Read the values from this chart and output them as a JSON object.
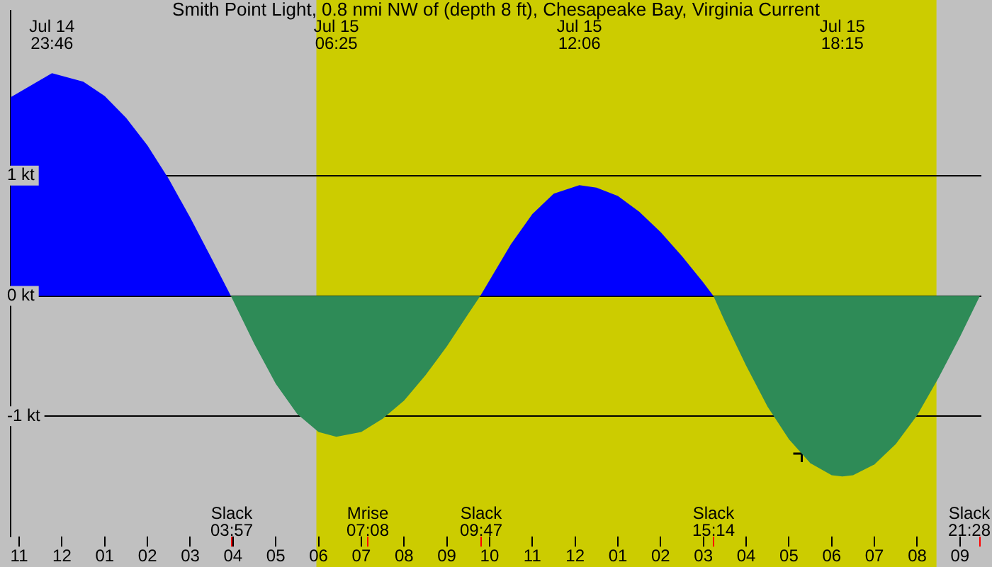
{
  "chart_data": {
    "type": "area",
    "title": "Smith Point Light, 0.8 nmi NW of (depth 8 ft), Chesapeake Bay, Virginia Current",
    "xlim": [
      "--07-14T22:48",
      "--07-15T21:30"
    ],
    "xticks": [
      {
        "value": "--07-14T23:00",
        "label": "11"
      },
      {
        "value": "--07-15T00:00",
        "label": "12"
      },
      {
        "value": "--07-15T01:00",
        "label": "01"
      },
      {
        "value": "--07-15T02:00",
        "label": "02"
      },
      {
        "value": "--07-15T03:00",
        "label": "03"
      },
      {
        "value": "--07-15T04:00",
        "label": "04"
      },
      {
        "value": "--07-15T05:00",
        "label": "05"
      },
      {
        "value": "--07-15T06:00",
        "label": "06"
      },
      {
        "value": "--07-15T07:00",
        "label": "07"
      },
      {
        "value": "--07-15T08:00",
        "label": "08"
      },
      {
        "value": "--07-15T09:00",
        "label": "09"
      },
      {
        "value": "--07-15T10:00",
        "label": "10"
      },
      {
        "value": "--07-15T11:00",
        "label": "11"
      },
      {
        "value": "--07-15T12:00",
        "label": "12"
      },
      {
        "value": "--07-15T13:00",
        "label": "01"
      },
      {
        "value": "--07-15T14:00",
        "label": "02"
      },
      {
        "value": "--07-15T15:00",
        "label": "03"
      },
      {
        "value": "--07-15T16:00",
        "label": "04"
      },
      {
        "value": "--07-15T17:00",
        "label": "05"
      },
      {
        "value": "--07-15T18:00",
        "label": "06"
      },
      {
        "value": "--07-15T19:00",
        "label": "07"
      },
      {
        "value": "--07-15T20:00",
        "label": "08"
      },
      {
        "value": "--07-15T21:00",
        "label": "09"
      }
    ],
    "ylim": [
      -2.0,
      2.37
    ],
    "yticks": [
      {
        "value": -1,
        "label": "-1 kt"
      },
      {
        "value": 0,
        "label": "0 kt"
      },
      {
        "value": 1,
        "label": "1 kt"
      }
    ],
    "grid": "y",
    "legend": false,
    "series": [
      {
        "type": "area",
        "color": "#0000ff",
        "x": [
          "--07-14T22:48",
          "--07-14T23:46",
          "--07-15T00:30",
          "--07-15T01:00",
          "--07-15T01:30",
          "--07-15T02:00",
          "--07-15T02:30",
          "--07-15T03:00",
          "--07-15T03:30",
          "--07-15T03:57",
          "--07-15T06:00",
          "--07-15T09:47",
          "--07-15T10:30",
          "--07-15T11:00",
          "--07-15T11:30",
          "--07-15T12:06",
          "--07-15T12:30",
          "--07-15T13:00",
          "--07-15T13:30",
          "--07-15T14:00",
          "--07-15T14:30",
          "--07-15T15:00",
          "--07-15T15:14"
        ],
        "values": [
          1.65,
          1.85,
          1.78,
          1.66,
          1.48,
          1.25,
          0.97,
          0.65,
          0.31,
          0,
          null,
          0,
          0.43,
          0.68,
          0.85,
          0.92,
          0.9,
          0.83,
          0.7,
          0.53,
          0.33,
          0.11,
          0
        ]
      },
      {
        "type": "area",
        "color": "#2e8b57",
        "x": [
          "--07-15T03:57",
          "--07-15T04:30",
          "--07-15T05:00",
          "--07-15T05:30",
          "--07-15T06:00",
          "--07-15T06:25",
          "--07-15T07:00",
          "--07-15T07:30",
          "--07-15T08:00",
          "--07-15T08:30",
          "--07-15T09:00",
          "--07-15T09:30",
          "--07-15T09:47",
          "--07-15T12:00",
          "--07-15T15:14",
          "--07-15T15:30",
          "--07-15T16:00",
          "--07-15T16:30",
          "--07-15T17:00",
          "--07-15T17:30",
          "--07-15T18:00",
          "--07-15T18:15",
          "--07-15T18:30",
          "--07-15T19:00",
          "--07-15T19:30",
          "--07-15T20:00",
          "--07-15T20:30",
          "--07-15T21:00",
          "--07-15T21:28"
        ],
        "values": [
          0,
          -0.4,
          -0.73,
          -0.98,
          -1.13,
          -1.17,
          -1.13,
          -1.02,
          -0.87,
          -0.66,
          -0.42,
          -0.15,
          0,
          null,
          0,
          -0.21,
          -0.58,
          -0.92,
          -1.19,
          -1.39,
          -1.49,
          -1.5,
          -1.49,
          -1.4,
          -1.23,
          -0.99,
          -0.68,
          -0.34,
          0
        ]
      },
      {
        "type": "scatter",
        "color": "#000000",
        "marker": "cross",
        "x": [
          "--07-15T17:18"
        ],
        "values": [
          -1.31
        ]
      }
    ],
    "bands": [
      {
        "axis": "x",
        "from": "--07-15T05:57",
        "to": "--07-15T20:27",
        "color": "#cccc00"
      }
    ],
    "ref_lines": [
      {
        "axis": "x",
        "value": "--07-15T03:57",
        "label": "Slack\n03:57",
        "color": "#ff0000"
      },
      {
        "axis": "x",
        "value": "--07-15T07:08",
        "label": "Mrise\n07:08",
        "color": "#ff0000"
      },
      {
        "axis": "x",
        "value": "--07-15T09:47",
        "label": "Slack\n09:47",
        "color": "#ff0000"
      },
      {
        "axis": "x",
        "value": "--07-15T15:14",
        "label": "Slack\n15:14",
        "color": "#ff0000"
      },
      {
        "axis": "x",
        "value": "--07-15T21:28",
        "label": "Slack\n21:28",
        "color": "#ff0000"
      }
    ],
    "annotations": [
      "Jul 14\n23:46",
      "Jul 15\n06:25",
      "Jul 15\n12:06",
      "Jul 15\n18:15"
    ]
  }
}
